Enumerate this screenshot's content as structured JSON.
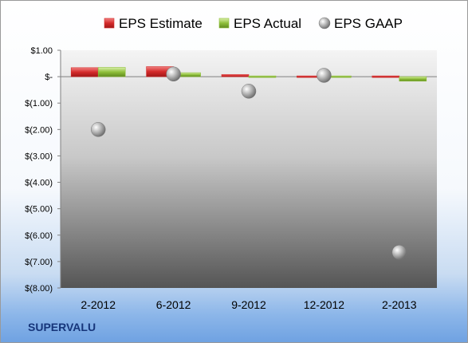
{
  "company": "SUPERVALU",
  "colors": {
    "estimate": "#d42a2a",
    "actual": "#8fbf3a",
    "gaap": "#9a9a9a"
  },
  "chart_data": {
    "type": "bar",
    "categories": [
      "2-2012",
      "6-2012",
      "9-2012",
      "12-2012",
      "2-2013"
    ],
    "series": [
      {
        "name": "EPS Estimate",
        "kind": "bar",
        "values": [
          0.34,
          0.38,
          0.08,
          -0.03,
          0.05
        ]
      },
      {
        "name": "EPS Actual",
        "kind": "bar",
        "values": [
          0.35,
          0.15,
          0.0,
          0.0,
          -0.17
        ]
      },
      {
        "name": "EPS GAAP",
        "kind": "scatter",
        "values": [
          -2.0,
          0.1,
          -0.55,
          0.05,
          -6.65
        ]
      }
    ],
    "yticks": [
      {
        "value": 1,
        "label": "$1.00"
      },
      {
        "value": 0,
        "label": "$-"
      },
      {
        "value": -1,
        "label": "$(1.00)"
      },
      {
        "value": -2,
        "label": "$(2.00)"
      },
      {
        "value": -3,
        "label": "$(3.00)"
      },
      {
        "value": -4,
        "label": "$(4.00)"
      },
      {
        "value": -5,
        "label": "$(5.00)"
      },
      {
        "value": -6,
        "label": "$(6.00)"
      },
      {
        "value": -7,
        "label": "$(7.00)"
      },
      {
        "value": -8,
        "label": "$(8.00)"
      }
    ],
    "ylim": [
      -8,
      1
    ],
    "legend_position": "top",
    "grid": false
  }
}
